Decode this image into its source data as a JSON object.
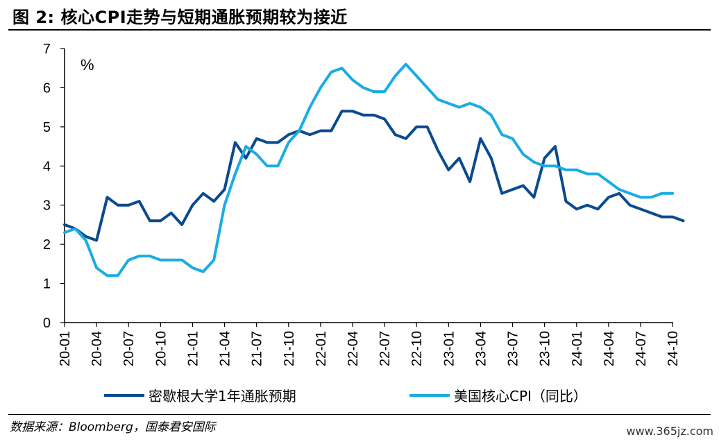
{
  "figure": {
    "title": "图 2:  核心CPI走势与短期通胀预期较为接近",
    "source": "数据来源：Bloomberg，国泰君安国际",
    "watermark": "www.365jz.com"
  },
  "chart_data": {
    "type": "line",
    "unit_label": "%",
    "ylim": [
      0,
      7
    ],
    "yticks": [
      "0",
      "1",
      "2",
      "3",
      "4",
      "5",
      "6",
      "7"
    ],
    "x_tick_labels": [
      "20-01",
      "20-04",
      "20-07",
      "20-10",
      "21-01",
      "21-04",
      "21-07",
      "21-10",
      "22-01",
      "22-04",
      "22-07",
      "22-10",
      "23-01",
      "23-04",
      "23-07",
      "23-10",
      "24-01",
      "24-04",
      "24-07",
      "24-10"
    ],
    "x_tick_step_months": 3,
    "grid": false,
    "legend_position": "bottom",
    "series": [
      {
        "name": "密歇根大学1年通胀预期",
        "color": "#0a4a8f",
        "values": [
          2.5,
          2.4,
          2.2,
          2.1,
          3.2,
          3.0,
          3.0,
          3.1,
          2.6,
          2.6,
          2.8,
          2.5,
          3.0,
          3.3,
          3.1,
          3.4,
          4.6,
          4.2,
          4.7,
          4.6,
          4.6,
          4.8,
          4.9,
          4.8,
          4.9,
          4.9,
          5.4,
          5.4,
          5.3,
          5.3,
          5.2,
          4.8,
          4.7,
          5.0,
          5.0,
          4.4,
          3.9,
          4.2,
          3.6,
          4.7,
          4.2,
          3.3,
          3.4,
          3.5,
          3.2,
          4.2,
          4.5,
          3.1,
          2.9,
          3.0,
          2.9,
          3.2,
          3.3,
          3.0,
          2.9,
          2.8,
          2.7,
          2.7,
          2.6
        ]
      },
      {
        "name": "美国核心CPI（同比）",
        "color": "#1aace3",
        "values": [
          2.3,
          2.4,
          2.1,
          1.4,
          1.2,
          1.2,
          1.6,
          1.7,
          1.7,
          1.6,
          1.6,
          1.6,
          1.4,
          1.3,
          1.6,
          3.0,
          3.8,
          4.5,
          4.3,
          4.0,
          4.0,
          4.6,
          4.9,
          5.5,
          6.0,
          6.4,
          6.5,
          6.2,
          6.0,
          5.9,
          5.9,
          6.3,
          6.6,
          6.3,
          6.0,
          5.7,
          5.6,
          5.5,
          5.6,
          5.5,
          5.3,
          4.8,
          4.7,
          4.3,
          4.1,
          4.0,
          4.0,
          3.9,
          3.9,
          3.8,
          3.8,
          3.6,
          3.4,
          3.3,
          3.2,
          3.2,
          3.3,
          3.3
        ]
      }
    ]
  }
}
